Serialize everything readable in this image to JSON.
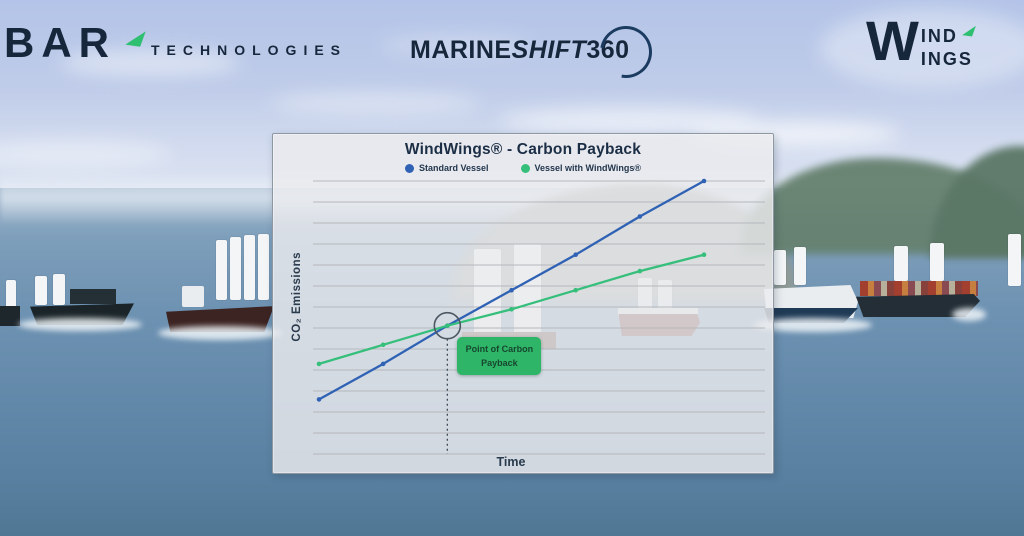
{
  "logos": {
    "bar": {
      "name": "BAR",
      "sub": "TECHNOLOGIES"
    },
    "marineshift": {
      "part1": "MARINE",
      "part2": "SHIFT",
      "part3": "360"
    },
    "windwings": {
      "w": "W",
      "top": "IND",
      "bottom": "INGS"
    }
  },
  "icons": {
    "bar_flag": "green-pennant",
    "windwings_flag": "green-pennant",
    "marineshift_circle": "open-circle-around-360"
  },
  "chart": {
    "title": "WindWings® - Carbon Payback",
    "ylabel": "CO₂ Emissions",
    "xlabel": "Time",
    "annotation": "Point of Carbon Payback",
    "legend": [
      {
        "label": "Standard Vessel",
        "color": "#2f62b4"
      },
      {
        "label": "Vessel with WindWings®",
        "color": "#35bf7b"
      }
    ]
  },
  "chart_data": {
    "type": "line",
    "title": "WindWings® - Carbon Payback",
    "xlabel": "Time",
    "ylabel": "CO₂ Emissions",
    "x": [
      0,
      1,
      2,
      3,
      4,
      5,
      6
    ],
    "series": [
      {
        "name": "Standard Vessel",
        "color": "#2f62b4",
        "values": [
          20,
          33,
          47,
          60,
          73,
          87,
          100
        ]
      },
      {
        "name": "Vessel with WindWings®",
        "color": "#35bf7b",
        "values": [
          33,
          40,
          47,
          53,
          60,
          67,
          73
        ]
      }
    ],
    "ylim": [
      0,
      100
    ],
    "xlim": [
      0,
      6
    ],
    "grid": true,
    "gridline_count": 14,
    "legend_position": "top",
    "axis_tick_labels": "none",
    "annotation": {
      "label": "Point of Carbon Payback",
      "x": 2,
      "y": 47
    }
  },
  "colors": {
    "standard_vessel_line": "#2f62b4",
    "windwings_vessel_line": "#35bf7b",
    "annotation_box": "#2eb567",
    "logo_navy": "#16273c",
    "logo_green": "#2fbf71"
  }
}
